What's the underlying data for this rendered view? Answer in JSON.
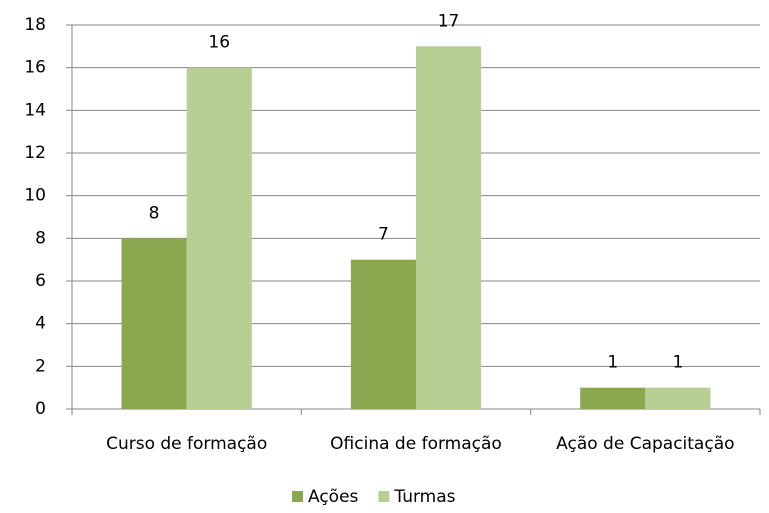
{
  "chart_data": {
    "type": "bar",
    "categories": [
      "Curso de formação",
      "Oficina de formação",
      "Ação de Capacitação"
    ],
    "series": [
      {
        "name": "Ações",
        "color": "#8aa84f",
        "values": [
          8,
          7,
          1
        ]
      },
      {
        "name": "Turmas",
        "color": "#b8cf94",
        "values": [
          16,
          17,
          1
        ]
      }
    ],
    "ylim": [
      0,
      18
    ],
    "yticks": [
      0,
      2,
      4,
      6,
      8,
      10,
      12,
      14,
      16,
      18
    ],
    "grid": true,
    "legend": "bottom"
  }
}
